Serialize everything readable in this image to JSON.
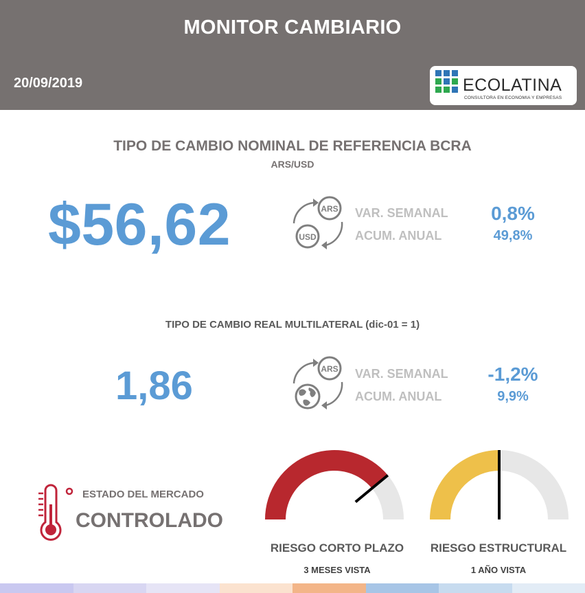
{
  "header": {
    "title": "MONITOR CAMBIARIO",
    "date": "20/09/2019",
    "logo": {
      "name": "ECOLATINA",
      "tagline": "CONSULTORA EN ECONOMIA Y EMPRESAS"
    }
  },
  "nominal": {
    "title": "TIPO DE CAMBIO NOMINAL DE REFERENCIA BCRA",
    "subtitle": "ARS/USD",
    "value": "$56,62",
    "icon_labels": {
      "top": "ARS",
      "bottom": "USD"
    },
    "weekly_label": "VAR. SEMANAL",
    "annual_label": "ACUM. ANUAL",
    "weekly_value": "0,8%",
    "annual_value": "49,8%"
  },
  "real": {
    "title": "TIPO DE CAMBIO REAL MULTILATERAL (dic-01 = 1)",
    "value": "1,86",
    "icon_labels": {
      "top": "ARS"
    },
    "weekly_label": "VAR. SEMANAL",
    "annual_label": "ACUM. ANUAL",
    "weekly_value": "-1,2%",
    "annual_value": "9,9%"
  },
  "market": {
    "label": "ESTADO DEL MERCADO",
    "state": "CONTROLADO",
    "icon": "thermometer-icon",
    "color": "#c0243a"
  },
  "gauges": [
    {
      "label": "RIESGO CORTO PLAZO",
      "sublabel": "3 MESES VISTA",
      "level": 0.78,
      "color": "#b8282e"
    },
    {
      "label": "RIESGO ESTRUCTURAL",
      "sublabel": "1 AÑO VISTA",
      "level": 0.5,
      "color": "#eec04a"
    }
  ],
  "colors": {
    "header_bg": "#767170",
    "accent_blue": "#5b9bd5",
    "gray_text": "#767171",
    "muted_label": "#bfbfbf",
    "gauge_track": "#e7e7e7"
  },
  "bottom_strip_colors": [
    "#c9c8f0",
    "#d8d6f2",
    "#e6e4f6",
    "#fbe2cf",
    "#f3b588",
    "#a7c5e6",
    "#c7dbef",
    "#e2ecf6"
  ]
}
